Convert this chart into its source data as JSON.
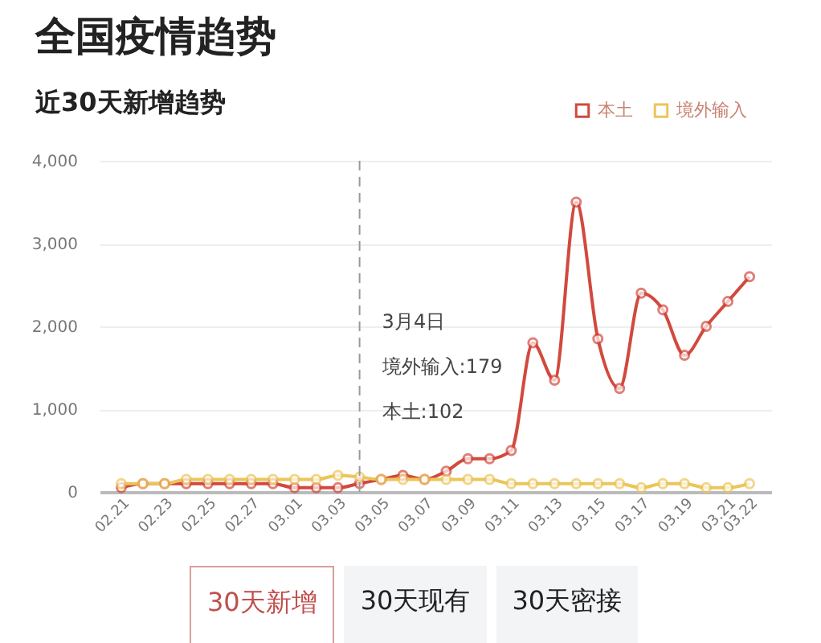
{
  "chart_data": {
    "type": "line",
    "title": "全国疫情趋势",
    "subtitle": "近30天新增趋势",
    "x": [
      "--02-21",
      "--02-22",
      "--02-23",
      "--02-24",
      "--02-25",
      "--02-26",
      "--02-27",
      "--02-28",
      "--03-01",
      "--03-02",
      "--03-03",
      "--03-04",
      "--03-05",
      "--03-06",
      "--03-07",
      "--03-08",
      "--03-09",
      "--03-10",
      "--03-11",
      "--03-12",
      "--03-13",
      "--03-14",
      "--03-15",
      "--03-16",
      "--03-17",
      "--03-18",
      "--03-19",
      "--03-20",
      "--03-21",
      "--03-22"
    ],
    "series": [
      {
        "name": "本土",
        "color": "#d2493d",
        "values": [
          50,
          100,
          100,
          100,
          100,
          100,
          100,
          100,
          50,
          50,
          50,
          102,
          150,
          200,
          150,
          250,
          400,
          400,
          500,
          1800,
          1350,
          3500,
          1850,
          1250,
          2400,
          2200,
          1650,
          2000,
          2300,
          2600
        ]
      },
      {
        "name": "境外输入",
        "color": "#ecc55a",
        "values": [
          100,
          100,
          100,
          150,
          150,
          150,
          150,
          150,
          150,
          150,
          200,
          179,
          150,
          150,
          150,
          150,
          150,
          150,
          100,
          100,
          100,
          100,
          100,
          100,
          50,
          100,
          100,
          50,
          50,
          100
        ]
      }
    ],
    "xlim": [
      "--02-20",
      "--03-23"
    ],
    "xticks": [
      {
        "value": "--02-21",
        "label": "02.21"
      },
      {
        "value": "--02-23",
        "label": "02.23"
      },
      {
        "value": "--02-25",
        "label": "02.25"
      },
      {
        "value": "--02-27",
        "label": "02.27"
      },
      {
        "value": "--03-01",
        "label": "03.01"
      },
      {
        "value": "--03-03",
        "label": "03.03"
      },
      {
        "value": "--03-05",
        "label": "03.05"
      },
      {
        "value": "--03-07",
        "label": "03.07"
      },
      {
        "value": "--03-09",
        "label": "03.09"
      },
      {
        "value": "--03-11",
        "label": "03.11"
      },
      {
        "value": "--03-13",
        "label": "03.13"
      },
      {
        "value": "--03-15",
        "label": "03.15"
      },
      {
        "value": "--03-17",
        "label": "03.17"
      },
      {
        "value": "--03-19",
        "label": "03.19"
      },
      {
        "value": "--03-21",
        "label": "03.21"
      },
      {
        "value": "--03-22",
        "label": "03.22"
      }
    ],
    "ylim": [
      0,
      4000
    ],
    "yticks": [
      {
        "value": 0,
        "label": "0"
      },
      {
        "value": 1000,
        "label": "1,000"
      },
      {
        "value": 2000,
        "label": "2,000"
      },
      {
        "value": 3000,
        "label": "3,000"
      },
      {
        "value": 4000,
        "label": "4,000"
      }
    ],
    "ref_lines": [
      {
        "axis": "x",
        "value": "--03-04",
        "color": "#999999",
        "line_style": "dashed"
      }
    ],
    "annotations": [
      "3月4日",
      "境外输入:179",
      "本土:102",
      "30天新增",
      "30天现有",
      "30天密接"
    ],
    "grid": "y",
    "legend": "top right",
    "marker": "circle",
    "line_style": "solid"
  }
}
